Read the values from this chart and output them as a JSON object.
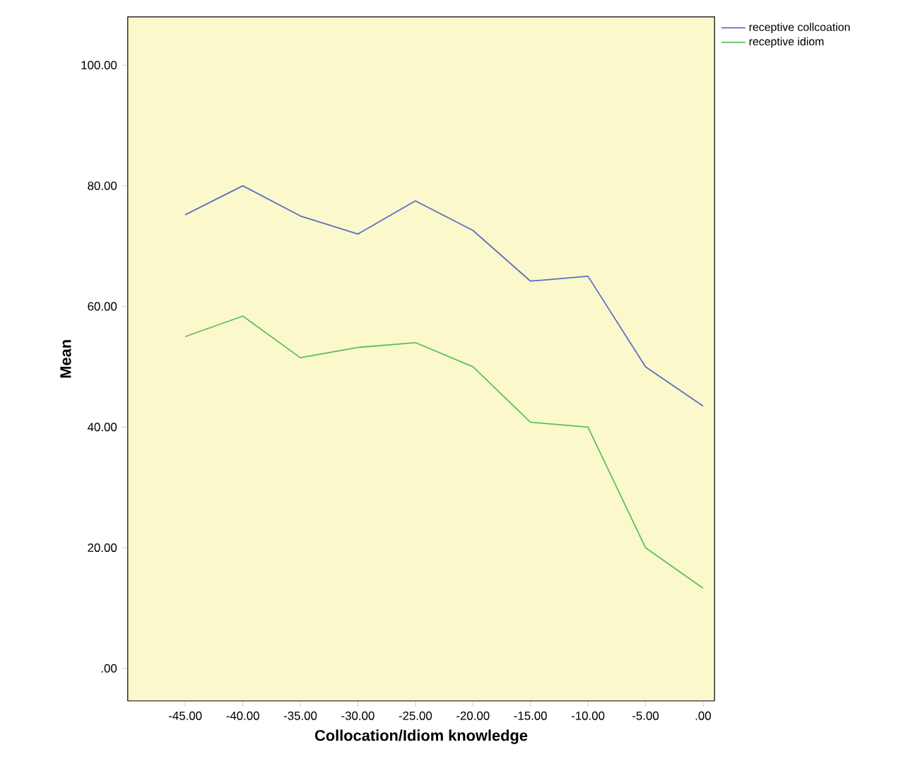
{
  "chart_data": {
    "type": "line",
    "xlabel": "Collocation/Idiom knowledge",
    "ylabel": "Mean",
    "x": [
      -45,
      -40,
      -35,
      -30,
      -25,
      -20,
      -15,
      -10,
      -5,
      0
    ],
    "series": [
      {
        "name": "receptive collcoation",
        "color": "#5b6fc4",
        "values": [
          75.2,
          80,
          75,
          72,
          77.5,
          72.6,
          64.2,
          65,
          50,
          43.5
        ]
      },
      {
        "name": "receptive idiom",
        "color": "#5cbf5c",
        "values": [
          55,
          58.4,
          51.5,
          53.2,
          54,
          50,
          40.8,
          40,
          20,
          13.3
        ]
      }
    ],
    "xlim": [
      -50,
      1
    ],
    "ylim": [
      -5.4,
      108
    ],
    "xticks": [
      {
        "value": -45,
        "label": "-45.00"
      },
      {
        "value": -40,
        "label": "-40.00"
      },
      {
        "value": -35,
        "label": "-35.00"
      },
      {
        "value": -30,
        "label": "-30.00"
      },
      {
        "value": -25,
        "label": "-25.00"
      },
      {
        "value": -20,
        "label": "-20.00"
      },
      {
        "value": -15,
        "label": "-15.00"
      },
      {
        "value": -10,
        "label": "-10.00"
      },
      {
        "value": -5,
        "label": "-5.00"
      },
      {
        "value": 0,
        "label": ".00"
      }
    ],
    "yticks": [
      {
        "value": 0,
        "label": ".00"
      },
      {
        "value": 20,
        "label": "20.00"
      },
      {
        "value": 40,
        "label": "40.00"
      },
      {
        "value": 60,
        "label": "60.00"
      },
      {
        "value": 80,
        "label": "80.00"
      },
      {
        "value": 100,
        "label": "100.00"
      }
    ],
    "legend": "top right",
    "grid": false,
    "marker": "none",
    "line_style": "solid"
  }
}
